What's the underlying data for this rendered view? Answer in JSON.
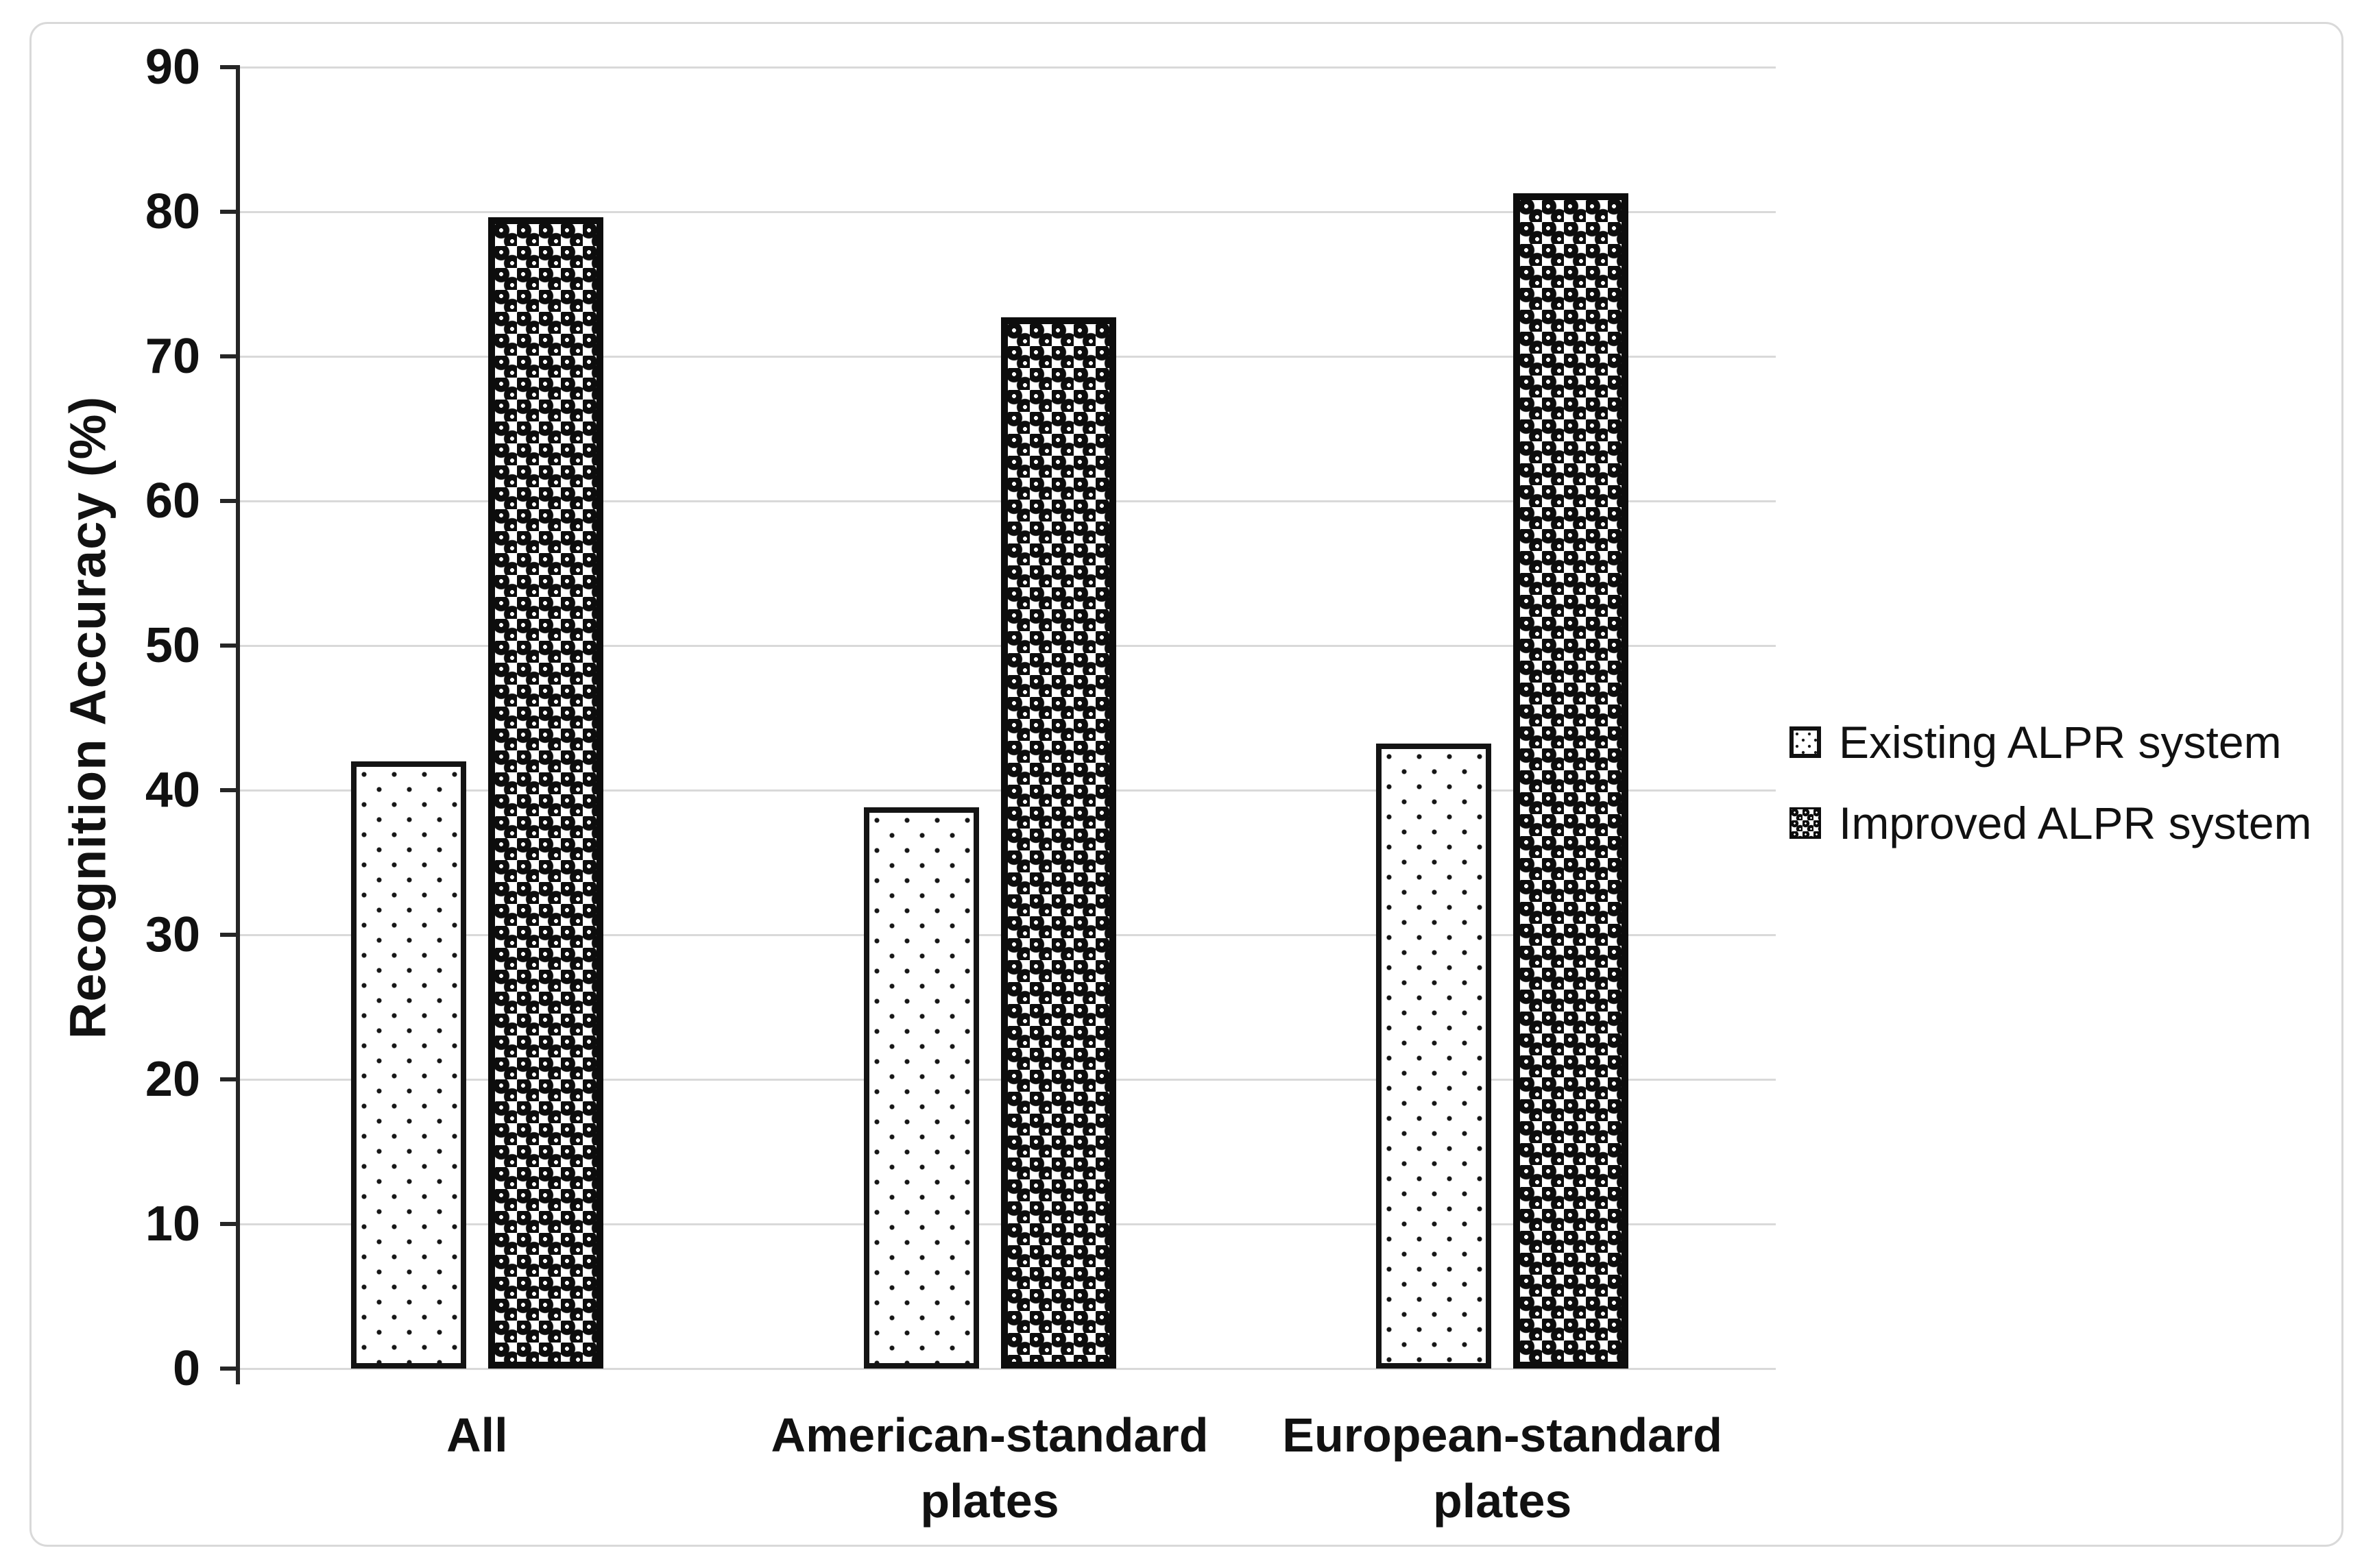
{
  "figure": {
    "background": "#ffffff",
    "border_color": "#d9d9d9"
  },
  "colors": {
    "text": "#111111",
    "axis_line": "#262626",
    "gridline": "#d9d9d9",
    "pattern_ink": "#0d0d0d",
    "bar_background": "#ffffff"
  },
  "chart_data": {
    "type": "bar",
    "title": "",
    "categories": [
      "All",
      "American-standard\nplates",
      "European-standard\nplates"
    ],
    "series": [
      {
        "name": "Existing ALPR system",
        "pattern": "light-dots",
        "values": [
          42,
          38.8,
          43.2
        ]
      },
      {
        "name": "Improved ALPR system",
        "pattern": "dark-balls",
        "values": [
          79.6,
          72.7,
          81.3
        ]
      }
    ],
    "xlabel": "",
    "ylabel": "Recognition Accuracy (%)",
    "ylim": [
      0,
      90
    ],
    "yticks": [
      0,
      10,
      20,
      30,
      40,
      50,
      60,
      70,
      80,
      90
    ],
    "grid": "horizontal",
    "legend_position": "right-middle"
  }
}
